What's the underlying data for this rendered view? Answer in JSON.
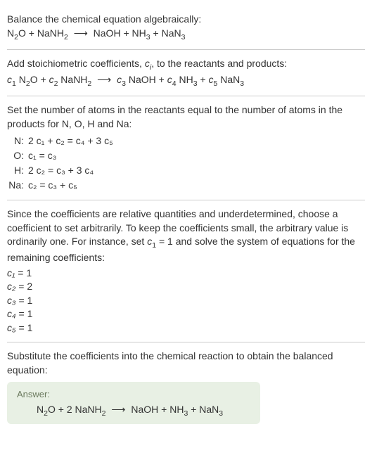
{
  "colors": {
    "text": "#333333",
    "divider": "#cccccc",
    "answer_bg": "#e8f0e4",
    "answer_label": "#6b7a5e"
  },
  "typography": {
    "base_fontsize": 14,
    "sub_scale": 0.75,
    "line_height": 1.4
  },
  "section1": {
    "title": "Balance the chemical equation algebraically:",
    "equation": {
      "lhs": [
        {
          "formula": "N",
          "sub": "2",
          "rest": "O"
        },
        {
          "formula": "NaNH",
          "sub": "2",
          "rest": ""
        }
      ],
      "rhs": [
        {
          "formula": "NaOH",
          "sub": "",
          "rest": ""
        },
        {
          "formula": "NH",
          "sub": "3",
          "rest": ""
        },
        {
          "formula": "NaN",
          "sub": "3",
          "rest": ""
        }
      ]
    }
  },
  "section2": {
    "text_pre": "Add stoichiometric coefficients, ",
    "ci": "c",
    "ci_sub": "i",
    "text_post": ", to the reactants and products:",
    "equation": {
      "terms_lhs": [
        {
          "c": "c",
          "csub": "1",
          "sp": "N",
          "spsub": "2",
          "sprest": "O"
        },
        {
          "c": "c",
          "csub": "2",
          "sp": "NaNH",
          "spsub": "2",
          "sprest": ""
        }
      ],
      "terms_rhs": [
        {
          "c": "c",
          "csub": "3",
          "sp": "NaOH",
          "spsub": "",
          "sprest": ""
        },
        {
          "c": "c",
          "csub": "4",
          "sp": "NH",
          "spsub": "3",
          "sprest": ""
        },
        {
          "c": "c",
          "csub": "5",
          "sp": "NaN",
          "spsub": "3",
          "sprest": ""
        }
      ]
    }
  },
  "section3": {
    "intro": "Set the number of atoms in the reactants equal to the number of atoms in the products for N, O, H and Na:",
    "rows": [
      {
        "label": "N:",
        "lhs": "2 c₁ + c₂",
        "rhs": "c₄ + 3 c₅"
      },
      {
        "label": "O:",
        "lhs": "c₁",
        "rhs": "c₃"
      },
      {
        "label": "H:",
        "lhs": "2 c₂",
        "rhs": "c₃ + 3 c₄"
      },
      {
        "label": "Na:",
        "lhs": "c₂",
        "rhs": "c₃ + c₅"
      }
    ]
  },
  "section4": {
    "intro_a": "Since the coefficients are relative quantities and underdetermined, choose a coefficient to set arbitrarily. To keep the coefficients small, the arbitrary value is ordinarily one. For instance, set ",
    "c1": "c",
    "c1sub": "1",
    "intro_b": " = 1 and solve the system of equations for the remaining coefficients:",
    "solutions": [
      {
        "var": "c₁",
        "val": "1"
      },
      {
        "var": "c₂",
        "val": "2"
      },
      {
        "var": "c₃",
        "val": "1"
      },
      {
        "var": "c₄",
        "val": "1"
      },
      {
        "var": "c₅",
        "val": "1"
      }
    ]
  },
  "section5": {
    "intro": "Substitute the coefficients into the chemical reaction to obtain the balanced equation:",
    "answer_label": "Answer:",
    "equation": {
      "lhs": [
        {
          "coeff": "",
          "formula": "N",
          "sub": "2",
          "rest": "O"
        },
        {
          "coeff": "2 ",
          "formula": "NaNH",
          "sub": "2",
          "rest": ""
        }
      ],
      "rhs": [
        {
          "coeff": "",
          "formula": "NaOH",
          "sub": "",
          "rest": ""
        },
        {
          "coeff": "",
          "formula": "NH",
          "sub": "3",
          "rest": ""
        },
        {
          "coeff": "",
          "formula": "NaN",
          "sub": "3",
          "rest": ""
        }
      ]
    }
  }
}
